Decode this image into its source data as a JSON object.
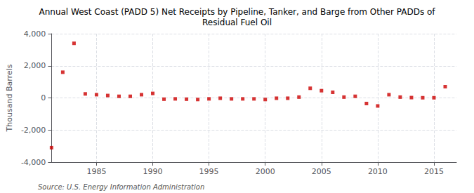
{
  "chart_data": {
    "type": "scatter",
    "title": "Annual West Coast (PADD 5) Net Receipts by Pipeline, Tanker, and Barge from Other PADDs of\nResidual Fuel Oil",
    "ylabel": "Thousand Barrels",
    "source": "Source: U.S. Energy Information Administration",
    "x": [
      1981,
      1982,
      1983,
      1984,
      1985,
      1986,
      1987,
      1988,
      1989,
      1990,
      1991,
      1992,
      1993,
      1994,
      1995,
      1996,
      1997,
      1998,
      1999,
      2000,
      2001,
      2002,
      2003,
      2004,
      2005,
      2006,
      2007,
      2008,
      2009,
      2010,
      2011,
      2012,
      2013,
      2014,
      2015,
      2016
    ],
    "values": [
      -3100,
      1600,
      3400,
      250,
      200,
      150,
      100,
      100,
      200,
      280,
      -80,
      -60,
      -80,
      -100,
      -60,
      -20,
      -60,
      -60,
      -60,
      -100,
      -20,
      -20,
      50,
      600,
      450,
      350,
      50,
      100,
      -350,
      -500,
      200,
      50,
      20,
      10,
      10,
      700
    ],
    "color": "#cc0000",
    "marker": "square",
    "xlim": [
      1981,
      2017
    ],
    "xticks": [
      1985,
      1990,
      1995,
      2000,
      2005,
      2010,
      2015
    ],
    "ylim": [
      -4000,
      4000
    ],
    "yticks": [
      {
        "value": -4000,
        "label": "-4,000"
      },
      {
        "value": -2000,
        "label": "-2,000"
      },
      0,
      {
        "value": 2000,
        "label": "2,000"
      },
      {
        "value": 4000,
        "label": "4,000"
      }
    ],
    "grid": true
  }
}
